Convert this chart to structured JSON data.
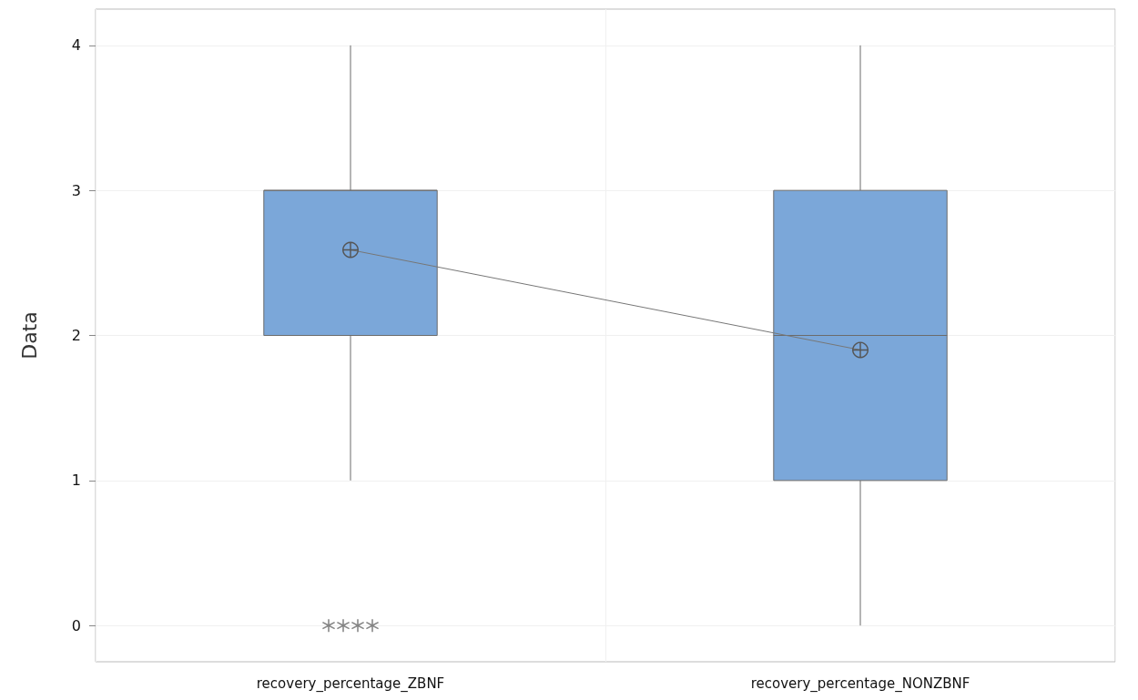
{
  "chart_data": {
    "type": "box",
    "ylabel": "Data",
    "categories": [
      "recovery_percentage_ZBNF",
      "recovery_percentage_NONZBNF"
    ],
    "boxes": [
      {
        "low": 1,
        "q1": 2,
        "median": 3,
        "q3": 3,
        "high": 4,
        "outliers": [
          0,
          0,
          0,
          0
        ]
      },
      {
        "low": 0,
        "q1": 1,
        "median": 2,
        "q3": 3,
        "high": 4
      }
    ],
    "color": "#7ba7d9",
    "series": [
      {
        "type": "line",
        "values": [
          2.59,
          1.9
        ],
        "color": "#777777",
        "marker": "circle"
      }
    ],
    "ylim": [
      -0.25,
      4.25
    ],
    "yticks": [
      0,
      1,
      2,
      3,
      4
    ],
    "grid": true
  }
}
